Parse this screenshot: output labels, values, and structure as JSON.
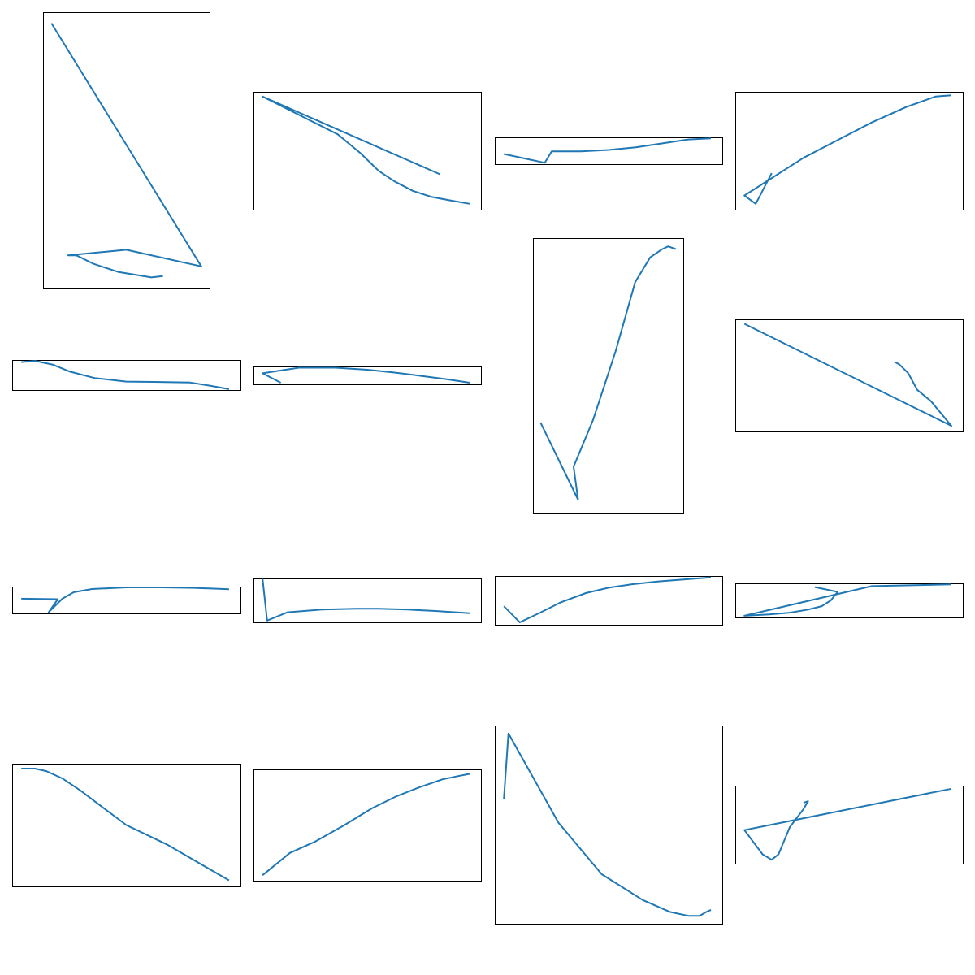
{
  "colors": {
    "line": "#1f77b4",
    "frame": "#000000",
    "background": "#ffffff"
  },
  "chart_data": [
    {
      "type": "line",
      "title": "",
      "xlabel": "",
      "ylabel": "",
      "axes": "off",
      "xlim": [
        0,
        1
      ],
      "ylim": [
        0,
        1
      ],
      "series": [
        {
          "x": [
            0.05,
            0.95,
            0.5,
            0.15,
            0.2,
            0.3,
            0.45,
            0.55,
            0.65,
            0.72
          ],
          "y": [
            0.96,
            0.08,
            0.14,
            0.12,
            0.12,
            0.09,
            0.06,
            0.05,
            0.04,
            0.045
          ]
        }
      ]
    },
    {
      "type": "line",
      "title": "",
      "xlabel": "",
      "ylabel": "",
      "axes": "off",
      "xlim": [
        0,
        1
      ],
      "ylim": [
        0,
        1
      ],
      "series": [
        {
          "x": [
            0.82,
            0.04,
            0.37,
            0.47,
            0.55,
            0.62,
            0.7,
            0.78,
            0.86,
            0.95
          ],
          "y": [
            0.3,
            0.96,
            0.64,
            0.48,
            0.33,
            0.24,
            0.16,
            0.11,
            0.08,
            0.05
          ]
        }
      ]
    },
    {
      "type": "line",
      "title": "",
      "xlabel": "",
      "ylabel": "",
      "axes": "off",
      "xlim": [
        0,
        1
      ],
      "ylim": [
        0,
        1
      ],
      "series": [
        {
          "x": [
            0.04,
            0.22,
            0.25,
            0.38,
            0.5,
            0.62,
            0.74,
            0.85,
            0.95
          ],
          "y": [
            0.38,
            0.05,
            0.48,
            0.48,
            0.53,
            0.63,
            0.78,
            0.92,
            0.96
          ]
        }
      ]
    },
    {
      "type": "line",
      "title": "",
      "xlabel": "",
      "ylabel": "",
      "axes": "off",
      "xlim": [
        0,
        1
      ],
      "ylim": [
        0,
        1
      ],
      "series": [
        {
          "x": [
            0.16,
            0.09,
            0.04,
            0.3,
            0.45,
            0.6,
            0.75,
            0.88,
            0.95
          ],
          "y": [
            0.31,
            0.05,
            0.12,
            0.44,
            0.59,
            0.74,
            0.87,
            0.96,
            0.97
          ]
        }
      ]
    },
    {
      "type": "line",
      "title": "",
      "xlabel": "",
      "ylabel": "",
      "axes": "off",
      "xlim": [
        0,
        1
      ],
      "ylim": [
        0,
        1
      ],
      "series": [
        {
          "x": [
            0.04,
            0.1,
            0.18,
            0.25,
            0.36,
            0.5,
            0.62,
            0.78,
            0.86,
            0.95
          ],
          "y": [
            0.93,
            0.97,
            0.84,
            0.62,
            0.4,
            0.28,
            0.27,
            0.25,
            0.15,
            0.03
          ]
        }
      ]
    },
    {
      "type": "line",
      "title": "",
      "xlabel": "",
      "ylabel": "",
      "axes": "off",
      "xlim": [
        0,
        1
      ],
      "ylim": [
        0,
        1
      ],
      "series": [
        {
          "x": [
            0.12,
            0.04,
            0.2,
            0.36,
            0.5,
            0.62,
            0.74,
            0.85,
            0.95
          ],
          "y": [
            0.09,
            0.62,
            0.93,
            0.93,
            0.82,
            0.66,
            0.47,
            0.28,
            0.09
          ]
        }
      ]
    },
    {
      "type": "line",
      "title": "",
      "xlabel": "",
      "ylabel": "",
      "axes": "off",
      "xlim": [
        0,
        1
      ],
      "ylim": [
        0,
        1
      ],
      "series": [
        {
          "x": [
            0.05,
            0.3,
            0.27,
            0.4,
            0.55,
            0.68,
            0.78,
            0.86,
            0.9,
            0.95
          ],
          "y": [
            0.33,
            0.05,
            0.17,
            0.34,
            0.59,
            0.84,
            0.93,
            0.96,
            0.97,
            0.96
          ]
        }
      ]
    },
    {
      "type": "line",
      "title": "",
      "xlabel": "",
      "ylabel": "",
      "axes": "off",
      "xlim": [
        0,
        1
      ],
      "ylim": [
        0,
        1
      ],
      "series": [
        {
          "x": [
            0.7,
            0.72,
            0.76,
            0.8,
            0.86,
            0.95,
            0.04
          ],
          "y": [
            0.62,
            0.6,
            0.52,
            0.37,
            0.27,
            0.05,
            0.96
          ]
        }
      ]
    },
    {
      "type": "line",
      "title": "",
      "xlabel": "",
      "ylabel": "",
      "axes": "off",
      "xlim": [
        0,
        1
      ],
      "ylim": [
        0,
        1
      ],
      "series": [
        {
          "x": [
            0.04,
            0.2,
            0.16,
            0.22,
            0.27,
            0.35,
            0.5,
            0.65,
            0.8,
            0.95
          ],
          "y": [
            0.55,
            0.53,
            0.05,
            0.55,
            0.79,
            0.91,
            0.97,
            0.97,
            0.95,
            0.9
          ]
        }
      ]
    },
    {
      "type": "line",
      "title": "",
      "xlabel": "",
      "ylabel": "",
      "axes": "off",
      "xlim": [
        0,
        1
      ],
      "ylim": [
        0,
        1
      ],
      "series": [
        {
          "x": [
            0.04,
            0.06,
            0.15,
            0.3,
            0.45,
            0.55,
            0.68,
            0.8,
            0.95
          ],
          "y": [
            0.99,
            0.04,
            0.23,
            0.29,
            0.31,
            0.31,
            0.29,
            0.26,
            0.21
          ]
        }
      ]
    },
    {
      "type": "line",
      "title": "",
      "xlabel": "",
      "ylabel": "",
      "axes": "off",
      "xlim": [
        0,
        1
      ],
      "ylim": [
        0,
        1
      ],
      "series": [
        {
          "x": [
            0.04,
            0.11,
            0.2,
            0.29,
            0.4,
            0.5,
            0.6,
            0.72,
            0.83,
            0.95
          ],
          "y": [
            0.38,
            0.05,
            0.25,
            0.46,
            0.65,
            0.76,
            0.83,
            0.89,
            0.93,
            0.97
          ]
        }
      ]
    },
    {
      "type": "line",
      "title": "",
      "xlabel": "",
      "ylabel": "",
      "axes": "off",
      "xlim": [
        0,
        1
      ],
      "ylim": [
        0,
        1
      ],
      "series": [
        {
          "x": [
            0.35,
            0.45,
            0.42,
            0.38,
            0.32,
            0.24,
            0.15,
            0.04,
            0.6,
            0.95
          ],
          "y": [
            0.89,
            0.75,
            0.5,
            0.33,
            0.23,
            0.14,
            0.09,
            0.05,
            0.92,
            0.97
          ]
        }
      ]
    },
    {
      "type": "line",
      "title": "",
      "xlabel": "",
      "ylabel": "",
      "axes": "off",
      "xlim": [
        0,
        1
      ],
      "ylim": [
        0,
        1
      ],
      "series": [
        {
          "x": [
            0.04,
            0.1,
            0.15,
            0.22,
            0.3,
            0.4,
            0.5,
            0.68,
            0.8,
            0.95
          ],
          "y": [
            0.96,
            0.96,
            0.94,
            0.88,
            0.78,
            0.64,
            0.5,
            0.34,
            0.21,
            0.05
          ]
        }
      ]
    },
    {
      "type": "line",
      "title": "",
      "xlabel": "",
      "ylabel": "",
      "axes": "off",
      "xlim": [
        0,
        1
      ],
      "ylim": [
        0,
        1
      ],
      "series": [
        {
          "x": [
            0.04,
            0.16,
            0.27,
            0.4,
            0.52,
            0.63,
            0.73,
            0.83,
            0.9,
            0.95
          ],
          "y": [
            0.05,
            0.25,
            0.35,
            0.5,
            0.65,
            0.76,
            0.84,
            0.91,
            0.94,
            0.96
          ]
        }
      ]
    },
    {
      "type": "line",
      "title": "",
      "xlabel": "",
      "ylabel": "",
      "axes": "off",
      "xlim": [
        0,
        1
      ],
      "ylim": [
        0,
        1
      ],
      "series": [
        {
          "x": [
            0.04,
            0.06,
            0.28,
            0.47,
            0.65,
            0.77,
            0.85,
            0.9,
            0.93,
            0.95
          ],
          "y": [
            0.63,
            0.96,
            0.51,
            0.25,
            0.12,
            0.06,
            0.04,
            0.04,
            0.06,
            0.07
          ]
        }
      ]
    },
    {
      "type": "line",
      "title": "",
      "xlabel": "",
      "ylabel": "",
      "axes": "off",
      "xlim": [
        0,
        1
      ],
      "ylim": [
        0,
        1
      ],
      "series": [
        {
          "x": [
            0.3,
            0.32,
            0.3,
            0.24,
            0.19,
            0.16,
            0.12,
            0.04,
            0.95
          ],
          "y": [
            0.78,
            0.8,
            0.7,
            0.47,
            0.12,
            0.05,
            0.12,
            0.43,
            0.96
          ]
        }
      ]
    }
  ]
}
